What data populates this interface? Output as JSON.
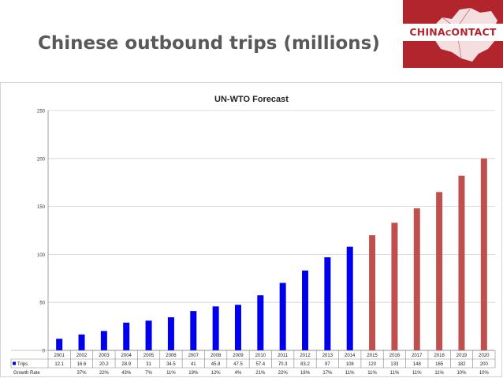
{
  "slide": {
    "title": "Chinese outbound trips (millions)"
  },
  "logo": {
    "brand": "ChinaContact",
    "icon": "china-map-icon",
    "color": "#b3252d"
  },
  "chart_data": {
    "type": "bar",
    "title": "UN-WTO Forecast",
    "xlabel": "",
    "ylabel": "",
    "ylim": [
      0,
      250
    ],
    "yticks": [
      "0",
      "50",
      "100",
      "150",
      "200",
      "250"
    ],
    "grid": true,
    "categories": [
      "2001",
      "2002",
      "2003",
      "2004",
      "2005",
      "2006",
      "2007",
      "2008",
      "2009",
      "2010",
      "2011",
      "2012",
      "2013",
      "2014",
      "2015",
      "2016",
      "2017",
      "2018",
      "2019",
      "2020"
    ],
    "series": [
      {
        "name": "Trips",
        "values": [
          12.1,
          16.6,
          20.2,
          28.9,
          31,
          34.5,
          41,
          45.8,
          47.5,
          57.4,
          70.3,
          83.2,
          97,
          108,
          120,
          133,
          148,
          165,
          182,
          200
        ],
        "labels": [
          "12.1",
          "16.6",
          "20.2",
          "28.9",
          "31",
          "34.5",
          "41",
          "45.8",
          "47.5",
          "57.4",
          "70.3",
          "83.2",
          "97",
          "108",
          "120",
          "133",
          "148",
          "165",
          "182",
          "200"
        ]
      }
    ],
    "growth_rate": {
      "name": "Growth Rate",
      "values": [
        "",
        "37%",
        "22%",
        "43%",
        "7%",
        "11%",
        "19%",
        "12%",
        "4%",
        "21%",
        "22%",
        "18%",
        "17%",
        "11%",
        "11%",
        "11%",
        "11%",
        "11%",
        "10%",
        "10%"
      ]
    },
    "forecast_from_index": 14,
    "colors": {
      "actual": "#0000ee",
      "forecast": "#c0504d",
      "grid": "#d0d0d0",
      "axis": "#888888"
    }
  }
}
